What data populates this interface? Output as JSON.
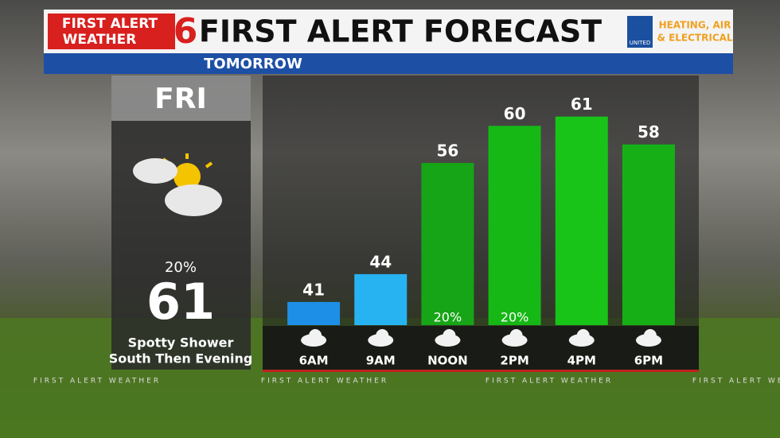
{
  "header": {
    "logo_line1": "FIRST ALERT",
    "logo_line2": "WEATHER",
    "logo_number": "6",
    "title": "FIRST ALERT FORECAST",
    "sponsor_line1": "HEATING, AIR",
    "sponsor_line2": "& ELECTRICAL",
    "sponsor_badge": "UNITED",
    "subtitle": "TOMORROW"
  },
  "day": {
    "name": "FRI",
    "precip": "20%",
    "high": "61",
    "summary_line1": "Spotty Shower",
    "summary_line2": "South Then Evening"
  },
  "chart_data": {
    "type": "bar",
    "categories": [
      "6AM",
      "9AM",
      "NOON",
      "2PM",
      "4PM",
      "6PM"
    ],
    "values": [
      41,
      44,
      56,
      60,
      61,
      58
    ],
    "colors": [
      "#1d8fe6",
      "#27b3f2",
      "#16a516",
      "#16b816",
      "#18c418",
      "#16b016"
    ],
    "precip": [
      null,
      null,
      "20%",
      "20%",
      null,
      null
    ],
    "ylim": [
      38.5,
      62
    ]
  },
  "footer_text": "FIRST ALERT WEATHER"
}
